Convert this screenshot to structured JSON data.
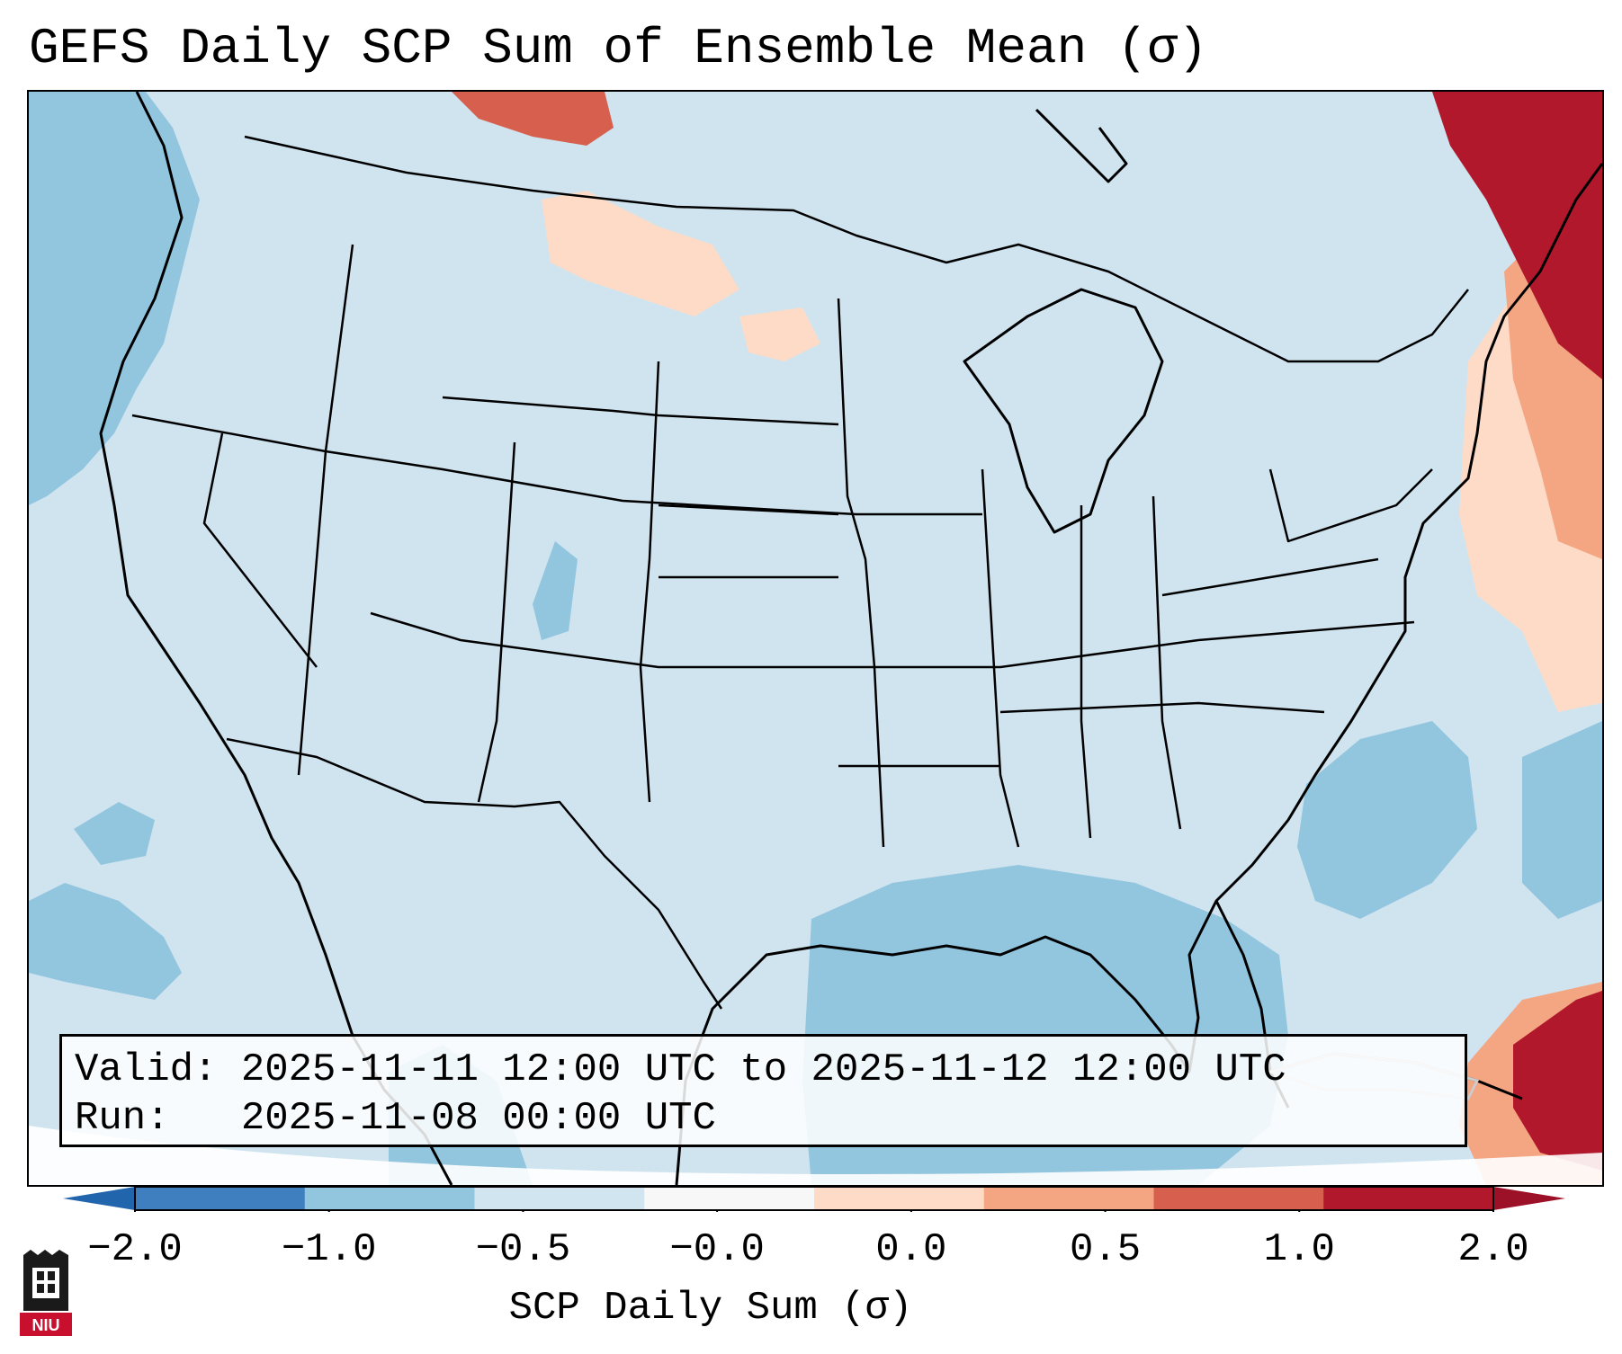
{
  "title": "GEFS Daily SCP Sum of Ensemble Mean (σ)",
  "info": {
    "valid_label": "Valid:",
    "valid_value": "2025-11-11 12:00 UTC to 2025-11-12 12:00 UTC",
    "run_label": "Run:",
    "run_value": "2025-11-08 00:00 UTC"
  },
  "colorbar": {
    "label": "SCP Daily Sum (σ)",
    "ticks": [
      "−2.0",
      "−1.0",
      "−0.5",
      "−0.0",
      "0.0",
      "0.5",
      "1.0",
      "2.0"
    ],
    "colors": [
      "#3f7fbf",
      "#92c5de",
      "#d1e5f0",
      "#f7f7f7",
      "#fddbc7",
      "#f4a582",
      "#d6604d",
      "#b2182b"
    ],
    "under_color": "#2166ac",
    "over_color": "#9c1127"
  },
  "logo": {
    "text": "NIU",
    "color": "#c8102e"
  },
  "map": {
    "background_color": "#d0e4f0",
    "land_outline_color": "#000000",
    "regions": [
      {
        "name": "pacific-low",
        "level": "-1.0"
      },
      {
        "name": "gulf-low",
        "level": "-1.0"
      },
      {
        "name": "atlantic-low",
        "level": "-1.0"
      },
      {
        "name": "northeast-canada-high",
        "level": "2.0"
      },
      {
        "name": "atlantic-moderate",
        "level": "0.5"
      },
      {
        "name": "caribbean-high",
        "level": "2.0"
      },
      {
        "name": "northern-plains-slight",
        "level": "0.0"
      }
    ]
  }
}
